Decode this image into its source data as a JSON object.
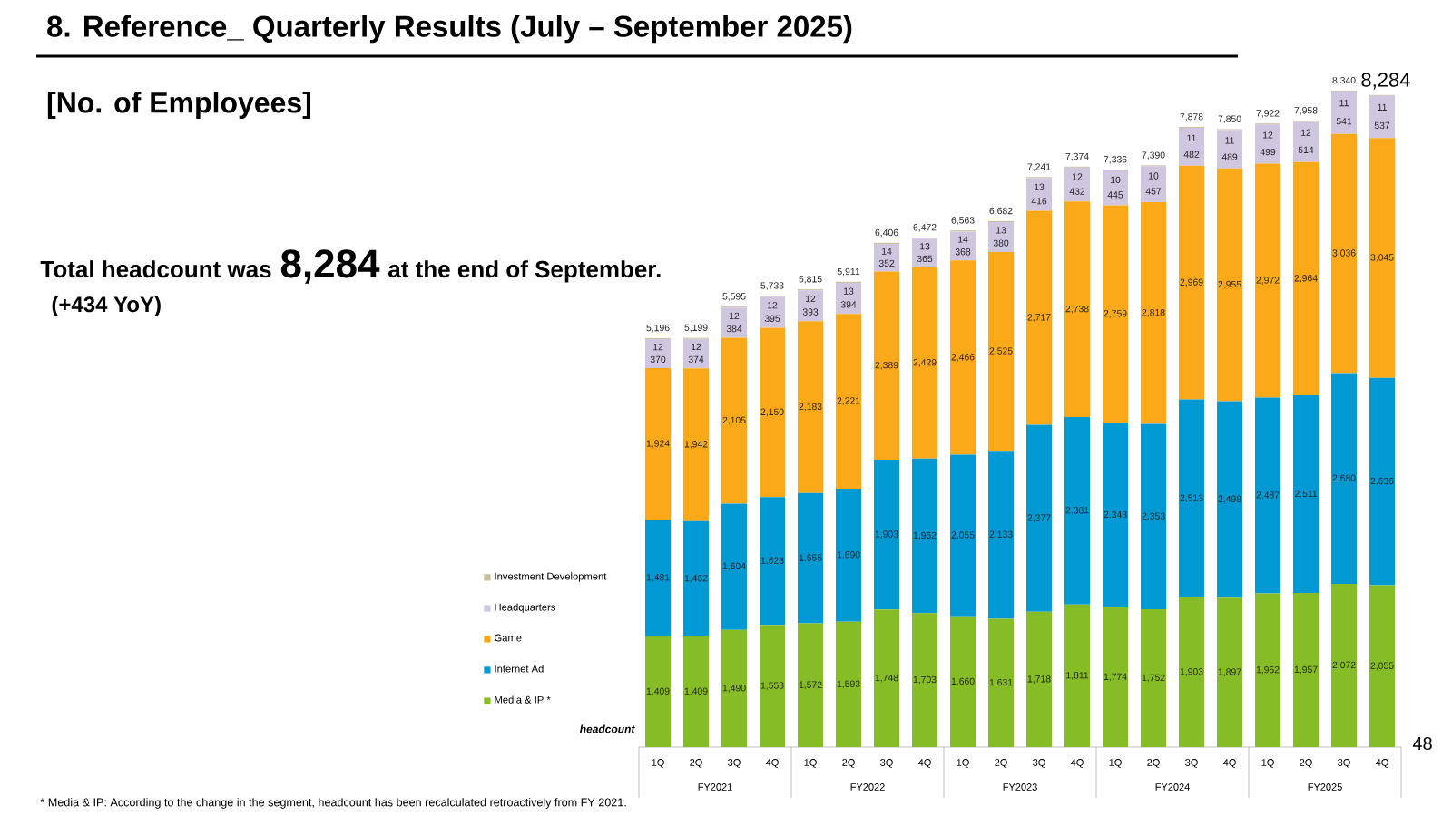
{
  "chart_data": {
    "type": "bar",
    "stacked": true,
    "title": "8.  Reference_ Quarterly Results (July – September 2025)",
    "subtitle": "[No. of Employees]",
    "ylabel": "headcount",
    "categories": [
      "1Q",
      "2Q",
      "3Q",
      "4Q",
      "1Q",
      "2Q",
      "3Q",
      "4Q",
      "1Q",
      "2Q",
      "3Q",
      "4Q",
      "1Q",
      "2Q",
      "3Q",
      "4Q",
      "1Q",
      "2Q",
      "3Q",
      "4Q"
    ],
    "series": [
      {
        "name": "Media & IP *",
        "color": "#86bc25",
        "values": [
          1409,
          1409,
          1490,
          1553,
          1572,
          1593,
          1748,
          1703,
          1660,
          1631,
          1718,
          1811,
          1774,
          1752,
          1903,
          1897,
          1952,
          1957,
          2072,
          2055
        ],
        "value_labels": [
          "1,409",
          "1,409",
          "1,490",
          "1,553",
          "1,572",
          "1,593",
          "1,748",
          "1,703",
          "1,660",
          "1,631",
          "1,718",
          "1,811",
          "1,774",
          "1,752",
          "1,903",
          "1,897",
          "1,952",
          "1,957",
          "2,072",
          "2,055"
        ]
      },
      {
        "name": "Internet Ad",
        "color": "#0099d4",
        "values": [
          1481,
          1462,
          1604,
          1623,
          1655,
          1690,
          1903,
          1962,
          2055,
          2133,
          2377,
          2381,
          2348,
          2353,
          2513,
          2498,
          2487,
          2511,
          2680,
          2636
        ],
        "value_labels": [
          "1,481",
          "1,462",
          "1,604",
          "1,623",
          "1,655",
          "1,690",
          "1,903",
          "1,962",
          "2,055",
          "2,133",
          "2,377",
          "2,381",
          "2,348",
          "2,353",
          "2,513",
          "2,498",
          "2,487",
          "2,511",
          "2,680",
          "2,636"
        ]
      },
      {
        "name": "Game",
        "color": "#fba919",
        "values": [
          1924,
          1942,
          2105,
          2150,
          2183,
          2221,
          2389,
          2429,
          2466,
          2525,
          2717,
          2738,
          2759,
          2818,
          2969,
          2955,
          2972,
          2964,
          3036,
          3045
        ],
        "value_labels": [
          "1,924",
          "1,942",
          "2,105",
          "2,150",
          "2,183",
          "2,221",
          "2,389",
          "2,429",
          "2,466",
          "2,525",
          "2,717",
          "2,738",
          "2,759",
          "2,818",
          "2,969",
          "2,955",
          "2,972",
          "2,964",
          "3,036",
          "3,045"
        ]
      },
      {
        "name": "Headquarters",
        "color": "#cfc6e0",
        "values": [
          370,
          374,
          384,
          395,
          393,
          394,
          352,
          365,
          368,
          380,
          416,
          432,
          445,
          457,
          482,
          489,
          499,
          514,
          541,
          537
        ],
        "value_labels": [
          "370",
          "374",
          "384",
          "395",
          "393",
          "394",
          "352",
          "365",
          "368",
          "380",
          "416",
          "432",
          "445",
          "457",
          "482",
          "489",
          "499",
          "514",
          "541",
          "537"
        ]
      },
      {
        "name": "Investment Development",
        "color": "#c9be9c",
        "values": [
          12,
          12,
          12,
          12,
          12,
          13,
          14,
          13,
          14,
          13,
          13,
          12,
          10,
          10,
          11,
          11,
          12,
          12,
          11,
          11
        ],
        "value_labels": [
          "12",
          "12",
          "12",
          "12",
          "12",
          "13",
          "14",
          "13",
          "14",
          "13",
          "13",
          "12",
          "10",
          "10",
          "11",
          "11",
          "12",
          "12",
          "11",
          "11"
        ]
      }
    ],
    "totals": [
      "5,196",
      "5,199",
      "5,595",
      "5,733",
      "5,815",
      "5,911",
      "6,406",
      "6,472",
      "6,563",
      "6,682",
      "7,241",
      "7,374",
      "7,336",
      "7,390",
      "7,878",
      "7,850",
      "7,922",
      "7,958",
      "8,340",
      "8,284"
    ],
    "legend": "left",
    "annotations": [
      "FY2021",
      "FY2022",
      "FY2023",
      "FY2024",
      "FY2025",
      "Total headcount was",
      "8,284",
      "at the end of September.",
      "(+434 YoY)",
      "* Media & IP: According to the change in the segment, headcount has been recalculated retroactively from FY 2021.",
      "48"
    ]
  }
}
